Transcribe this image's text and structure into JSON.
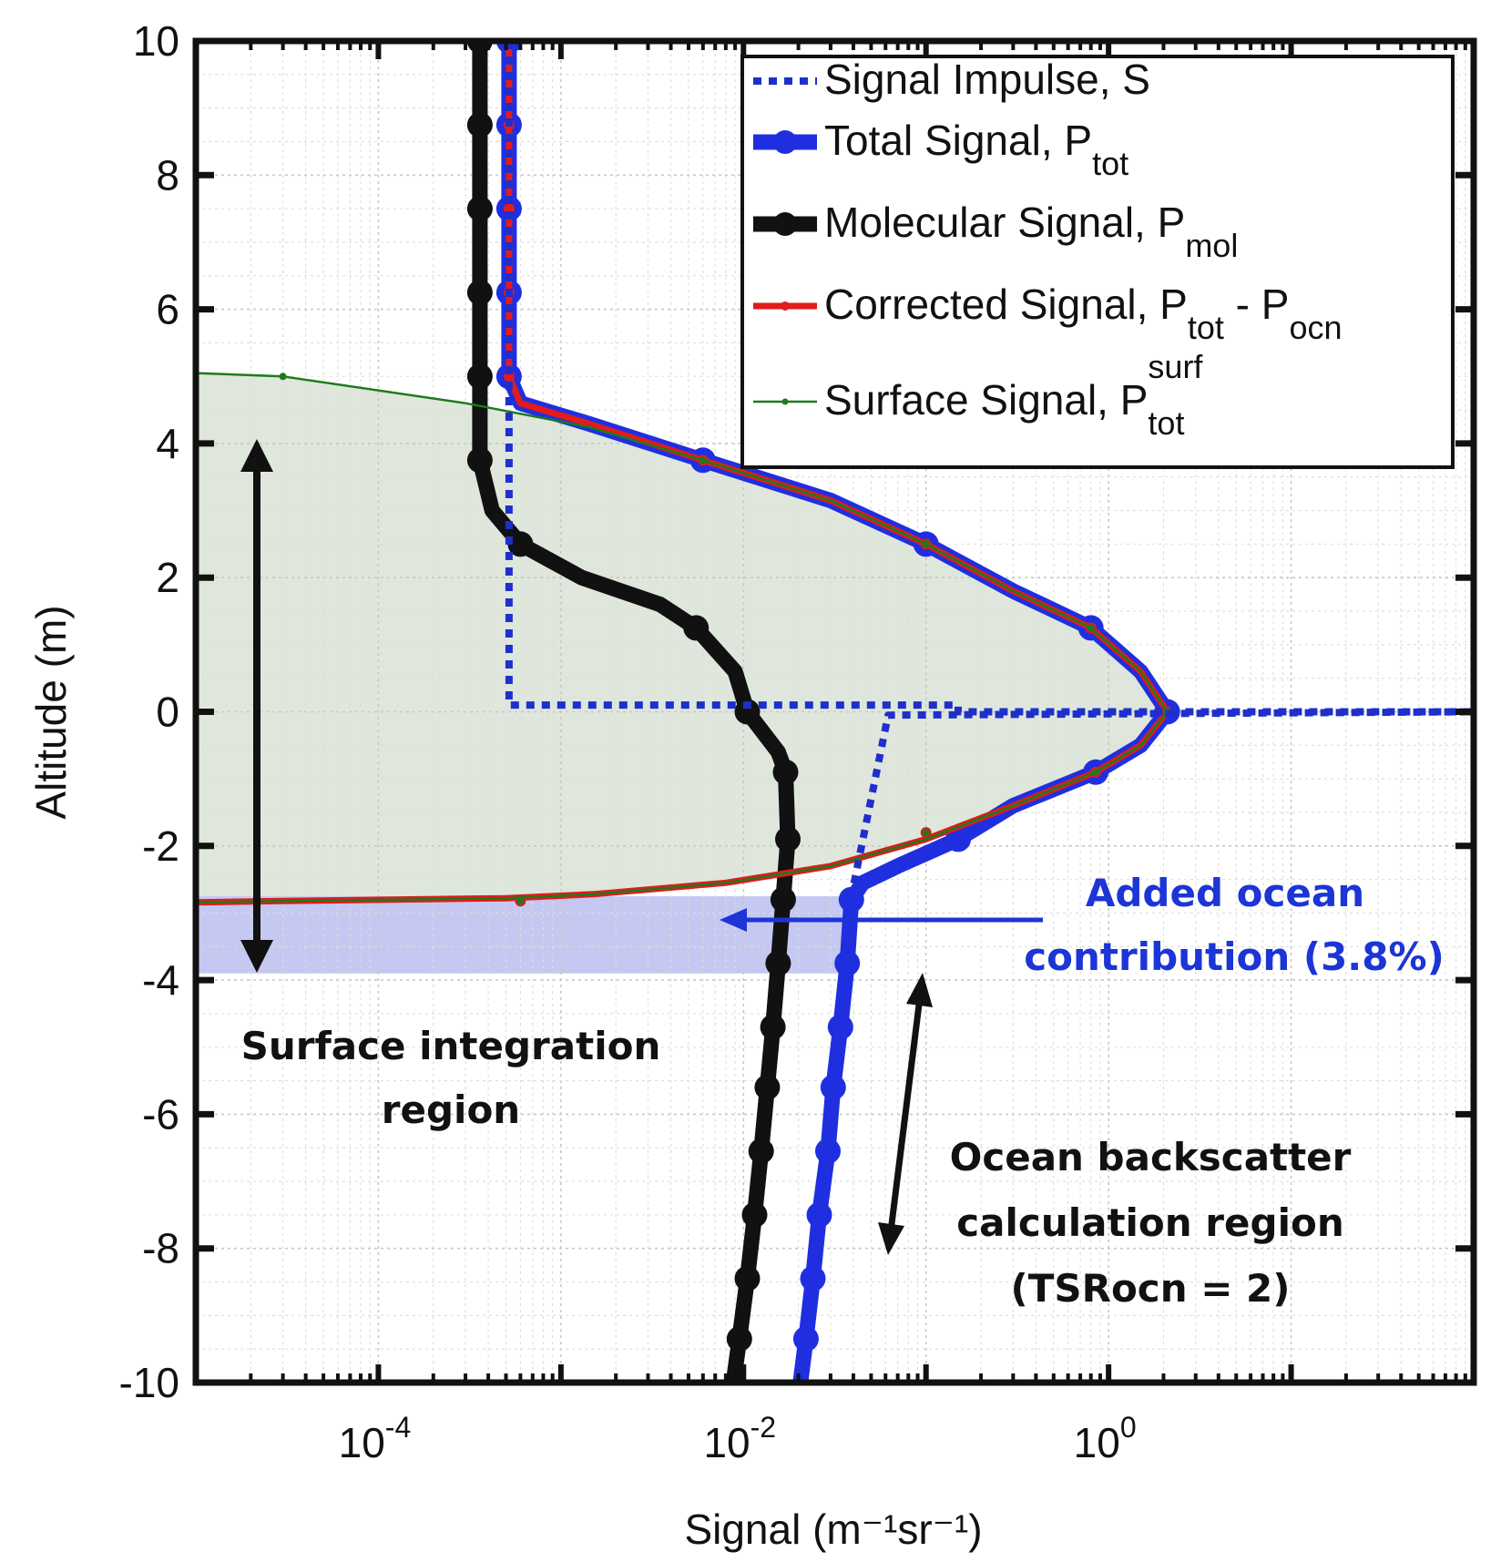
{
  "chart_data": {
    "type": "line",
    "xscale": "log",
    "xlabel": "Signal (m⁻¹sr⁻¹)",
    "ylabel": "Altitude (m)",
    "xlim": [
      1e-05,
      100
    ],
    "ylim": [
      -10,
      10
    ],
    "grid": true,
    "legend_position": "top-right",
    "xticks": [
      {
        "value": 0.0001,
        "base": "10",
        "exp": "-4"
      },
      {
        "value": 0.01,
        "base": "10",
        "exp": "-2"
      },
      {
        "value": 1,
        "base": "10",
        "exp": "0"
      }
    ],
    "yticks": [
      {
        "value": 10,
        "label": "10"
      },
      {
        "value": 8,
        "label": "8"
      },
      {
        "value": 6,
        "label": "6"
      },
      {
        "value": 4,
        "label": "4"
      },
      {
        "value": 2,
        "label": "2"
      },
      {
        "value": 0,
        "label": "0"
      },
      {
        "value": -2,
        "label": "-2"
      },
      {
        "value": -4,
        "label": "-4"
      },
      {
        "value": -6,
        "label": "-6"
      },
      {
        "value": -8,
        "label": "-8"
      },
      {
        "value": -10,
        "label": "-10"
      }
    ],
    "regions": {
      "surface_fill_color": "#dfe7dc",
      "ocean_fill_color": "#c5c8f1",
      "ocean_band": [
        -3.9,
        -2.75
      ]
    },
    "series": [
      {
        "key": "impulse",
        "legend": "Signal Impulse, S",
        "color": "#1f2fcc",
        "style": "dotted",
        "points": [
          [
            0.00052,
            10
          ],
          [
            0.00052,
            0.1
          ],
          [
            0.15,
            0.1
          ],
          [
            0.15,
            0
          ],
          [
            0.15,
            0
          ],
          [
            100,
            0
          ],
          [
            0.062,
            -0.05
          ],
          [
            0.04,
            -2.6
          ]
        ]
      },
      {
        "key": "total",
        "legend": "Total Signal, P",
        "legend_sub": "tot",
        "color": "#1f2fe0",
        "style": "thick",
        "points": [
          [
            0.00052,
            10
          ],
          [
            0.00052,
            8.75
          ],
          [
            0.00052,
            7.5
          ],
          [
            0.00052,
            6.25
          ],
          [
            0.00052,
            5
          ],
          [
            0.0006,
            4.6
          ],
          [
            0.0014,
            4.3
          ],
          [
            0.006,
            3.75
          ],
          [
            0.03,
            3.15
          ],
          [
            0.1,
            2.5
          ],
          [
            0.3,
            1.8
          ],
          [
            0.8,
            1.25
          ],
          [
            1.5,
            0.6
          ],
          [
            2.1,
            0
          ],
          [
            1.5,
            -0.5
          ],
          [
            0.85,
            -0.9
          ],
          [
            0.3,
            -1.4
          ],
          [
            0.15,
            -1.9
          ],
          [
            0.07,
            -2.3
          ],
          [
            0.045,
            -2.55
          ],
          [
            0.039,
            -2.8
          ],
          [
            0.037,
            -3.75
          ],
          [
            0.034,
            -4.7
          ],
          [
            0.031,
            -5.6
          ],
          [
            0.029,
            -6.55
          ],
          [
            0.026,
            -7.5
          ],
          [
            0.024,
            -8.45
          ],
          [
            0.022,
            -9.35
          ],
          [
            0.0205,
            -10
          ]
        ],
        "markers": [
          [
            0.00052,
            10
          ],
          [
            0.00052,
            8.75
          ],
          [
            0.00052,
            7.5
          ],
          [
            0.00052,
            6.25
          ],
          [
            0.00052,
            5
          ],
          [
            0.006,
            3.75
          ],
          [
            0.1,
            2.5
          ],
          [
            0.8,
            1.25
          ],
          [
            2.1,
            0
          ],
          [
            0.85,
            -0.9
          ],
          [
            0.15,
            -1.9
          ],
          [
            0.039,
            -2.8
          ],
          [
            0.037,
            -3.75
          ],
          [
            0.034,
            -4.7
          ],
          [
            0.031,
            -5.6
          ],
          [
            0.029,
            -6.55
          ],
          [
            0.026,
            -7.5
          ],
          [
            0.024,
            -8.45
          ],
          [
            0.022,
            -9.35
          ]
        ]
      },
      {
        "key": "molecular",
        "legend": "Molecular Signal, P",
        "legend_sub": "mol",
        "color": "#111111",
        "style": "thick",
        "points": [
          [
            0.00036,
            10
          ],
          [
            0.00036,
            8.75
          ],
          [
            0.00036,
            7.5
          ],
          [
            0.00036,
            6.25
          ],
          [
            0.00036,
            5
          ],
          [
            0.00036,
            3.75
          ],
          [
            0.00042,
            3.0
          ],
          [
            0.0006,
            2.5
          ],
          [
            0.0013,
            2.0
          ],
          [
            0.0035,
            1.6
          ],
          [
            0.0055,
            1.25
          ],
          [
            0.009,
            0.6
          ],
          [
            0.0105,
            0
          ],
          [
            0.0155,
            -0.6
          ],
          [
            0.017,
            -0.9
          ],
          [
            0.0175,
            -1.9
          ],
          [
            0.0165,
            -2.8
          ],
          [
            0.0155,
            -3.75
          ],
          [
            0.0145,
            -4.7
          ],
          [
            0.0135,
            -5.6
          ],
          [
            0.0125,
            -6.55
          ],
          [
            0.0115,
            -7.5
          ],
          [
            0.0105,
            -8.45
          ],
          [
            0.0095,
            -9.35
          ],
          [
            0.0088,
            -10
          ]
        ],
        "markers": [
          [
            0.00036,
            10
          ],
          [
            0.00036,
            8.75
          ],
          [
            0.00036,
            7.5
          ],
          [
            0.00036,
            6.25
          ],
          [
            0.00036,
            5
          ],
          [
            0.00036,
            3.75
          ],
          [
            0.0006,
            2.5
          ],
          [
            0.0055,
            1.25
          ],
          [
            0.0105,
            0
          ],
          [
            0.017,
            -0.9
          ],
          [
            0.0175,
            -1.9
          ],
          [
            0.0165,
            -2.8
          ],
          [
            0.0155,
            -3.75
          ],
          [
            0.0145,
            -4.7
          ],
          [
            0.0135,
            -5.6
          ],
          [
            0.0125,
            -6.55
          ],
          [
            0.0115,
            -7.5
          ],
          [
            0.0105,
            -8.45
          ],
          [
            0.0095,
            -9.35
          ]
        ]
      },
      {
        "key": "corrected",
        "legend": "Corrected Signal, P",
        "legend_sub": "tot",
        "legend_tail": " - P",
        "legend_sub2": "ocn",
        "color": "#e21b1b",
        "style": "medium",
        "points": [
          [
            0.00052,
            10
          ],
          [
            0.00052,
            8.75
          ],
          [
            0.00052,
            7.5
          ],
          [
            0.00052,
            6.25
          ],
          [
            0.00052,
            5
          ],
          [
            0.0006,
            4.6
          ],
          [
            0.0014,
            4.3
          ],
          [
            0.006,
            3.75
          ],
          [
            0.03,
            3.15
          ],
          [
            0.1,
            2.5
          ],
          [
            0.3,
            1.8
          ],
          [
            0.8,
            1.25
          ],
          [
            1.5,
            0.6
          ],
          [
            2.1,
            0
          ],
          [
            1.5,
            -0.5
          ],
          [
            0.85,
            -0.9
          ],
          [
            0.3,
            -1.4
          ],
          [
            0.1,
            -1.9
          ],
          [
            0.03,
            -2.3
          ],
          [
            0.008,
            -2.55
          ],
          [
            0.0015,
            -2.72
          ],
          [
            0.0005,
            -2.78
          ],
          [
            3e-05,
            -2.82
          ],
          [
            1e-05,
            -2.84
          ]
        ],
        "markers": [
          [
            0.00052,
            10
          ],
          [
            0.00052,
            8.75
          ],
          [
            0.00052,
            7.5
          ],
          [
            0.00052,
            6.25
          ],
          [
            0.00052,
            5
          ],
          [
            0.006,
            3.75
          ],
          [
            0.1,
            2.5
          ],
          [
            0.8,
            1.25
          ],
          [
            2.1,
            0
          ],
          [
            0.85,
            -0.9
          ],
          [
            0.1,
            -1.8
          ],
          [
            0.0006,
            -2.82
          ]
        ]
      },
      {
        "key": "surface",
        "legend": "Surface Signal, P",
        "legend_sub": "tot",
        "legend_sup": "surf",
        "color": "#1d7a1d",
        "style": "thin",
        "points": [
          [
            1e-05,
            5.05
          ],
          [
            3e-05,
            5.0
          ],
          [
            0.0003,
            4.6
          ],
          [
            0.0014,
            4.25
          ],
          [
            0.006,
            3.75
          ],
          [
            0.03,
            3.15
          ],
          [
            0.1,
            2.5
          ],
          [
            0.3,
            1.8
          ],
          [
            0.8,
            1.25
          ],
          [
            1.5,
            0.6
          ],
          [
            2.1,
            0
          ],
          [
            1.5,
            -0.5
          ],
          [
            0.85,
            -0.9
          ],
          [
            0.3,
            -1.4
          ],
          [
            0.1,
            -1.9
          ],
          [
            0.03,
            -2.3
          ],
          [
            0.008,
            -2.55
          ],
          [
            0.0015,
            -2.72
          ],
          [
            0.0005,
            -2.78
          ],
          [
            3e-05,
            -2.82
          ],
          [
            1e-05,
            -2.84
          ]
        ],
        "markers": [
          [
            3e-05,
            5.0
          ],
          [
            0.006,
            3.75
          ],
          [
            0.1,
            2.5
          ],
          [
            0.8,
            1.25
          ],
          [
            2.1,
            0
          ],
          [
            0.85,
            -0.9
          ],
          [
            0.1,
            -1.8
          ],
          [
            0.0006,
            -2.82
          ]
        ]
      }
    ],
    "annotations": {
      "added_ocean": [
        "Added ocean",
        "contribution (3.8%)"
      ],
      "surface_region": [
        "Surface integration",
        "region"
      ],
      "ocean_region": [
        "Ocean backscatter",
        "calculation region",
        "(TSRocn = 2)"
      ]
    },
    "annotation_colors": {
      "added_ocean": "#1c35d6",
      "black": "#111111"
    }
  }
}
